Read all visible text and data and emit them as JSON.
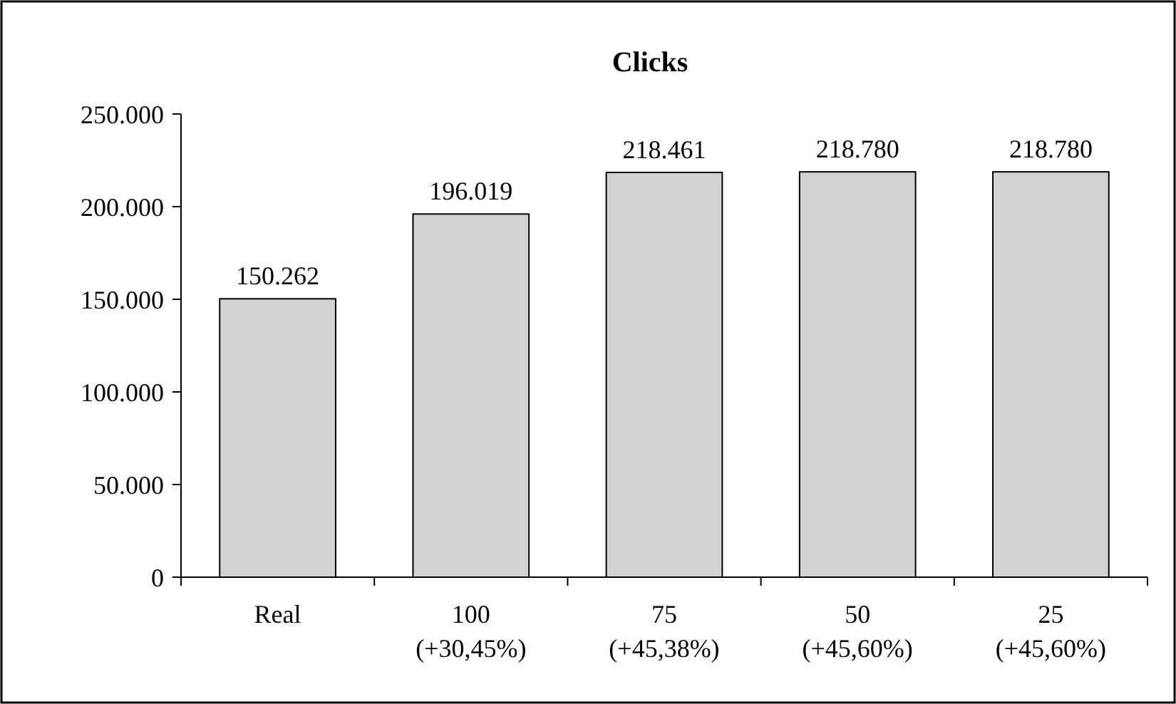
{
  "chart_data": {
    "type": "bar",
    "title": "Clicks",
    "categories": [
      "Real",
      "100\n(+30,45%)",
      "75\n(+45,38%)",
      "50\n(+45,60%)",
      "25\n(+45,60%)"
    ],
    "values": [
      150262,
      196019,
      218461,
      218780,
      218780
    ],
    "value_labels": [
      "150.262",
      "196.019",
      "218.461",
      "218.780",
      "218.780"
    ],
    "color": "#d3d3d3",
    "ylim": [
      0,
      250000
    ],
    "yticks": [
      0,
      {
        "value": 50000,
        "label": "50.000"
      },
      {
        "value": 100000,
        "label": "100.000"
      },
      {
        "value": 150000,
        "label": "150.000"
      },
      {
        "value": 200000,
        "label": "200.000"
      },
      {
        "value": 250000,
        "label": "250.000"
      }
    ],
    "grid": false
  }
}
